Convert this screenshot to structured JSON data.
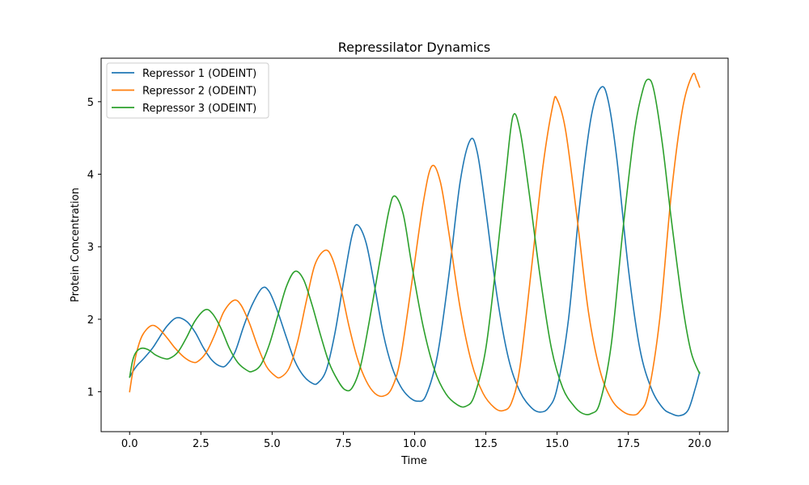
{
  "chart_data": {
    "type": "line",
    "title": "Repressilator Dynamics",
    "xlabel": "Time",
    "ylabel": "Protein Concentration",
    "xlim": [
      -1.0,
      21.0
    ],
    "ylim": [
      0.45,
      5.6
    ],
    "xticks": [
      0.0,
      2.5,
      5.0,
      7.5,
      10.0,
      12.5,
      15.0,
      17.5,
      20.0
    ],
    "xtick_labels": [
      "0.0",
      "2.5",
      "5.0",
      "7.5",
      "10.0",
      "12.5",
      "15.0",
      "17.5",
      "20.0"
    ],
    "yticks": [
      1,
      2,
      3,
      4,
      5
    ],
    "ytick_labels": [
      "1",
      "2",
      "3",
      "4",
      "5"
    ],
    "grid": false,
    "legend_position": "top-left",
    "series": [
      {
        "name": "Repressor 1 (ODEINT)",
        "color": "#1f77b4",
        "points": [
          [
            0.0,
            1.2
          ],
          [
            0.1,
            1.27
          ],
          [
            0.2,
            1.33
          ],
          [
            0.3,
            1.38
          ],
          [
            0.5,
            1.46
          ],
          [
            0.8,
            1.6
          ],
          [
            1.0,
            1.72
          ],
          [
            1.3,
            1.9
          ],
          [
            1.65,
            2.02
          ],
          [
            2.0,
            1.97
          ],
          [
            2.3,
            1.82
          ],
          [
            2.6,
            1.6
          ],
          [
            2.9,
            1.43
          ],
          [
            3.2,
            1.35
          ],
          [
            3.4,
            1.37
          ],
          [
            3.7,
            1.55
          ],
          [
            4.0,
            1.9
          ],
          [
            4.3,
            2.2
          ],
          [
            4.65,
            2.43
          ],
          [
            4.9,
            2.38
          ],
          [
            5.2,
            2.1
          ],
          [
            5.5,
            1.75
          ],
          [
            5.8,
            1.42
          ],
          [
            6.1,
            1.22
          ],
          [
            6.4,
            1.12
          ],
          [
            6.6,
            1.12
          ],
          [
            6.9,
            1.3
          ],
          [
            7.2,
            1.8
          ],
          [
            7.5,
            2.5
          ],
          [
            7.8,
            3.15
          ],
          [
            8.0,
            3.3
          ],
          [
            8.3,
            3.05
          ],
          [
            8.6,
            2.45
          ],
          [
            8.9,
            1.8
          ],
          [
            9.2,
            1.35
          ],
          [
            9.5,
            1.08
          ],
          [
            9.8,
            0.93
          ],
          [
            10.1,
            0.87
          ],
          [
            10.4,
            0.95
          ],
          [
            10.8,
            1.5
          ],
          [
            11.2,
            2.6
          ],
          [
            11.6,
            3.9
          ],
          [
            11.95,
            4.47
          ],
          [
            12.2,
            4.3
          ],
          [
            12.5,
            3.5
          ],
          [
            12.9,
            2.3
          ],
          [
            13.3,
            1.45
          ],
          [
            13.7,
            1.0
          ],
          [
            14.1,
            0.78
          ],
          [
            14.4,
            0.72
          ],
          [
            14.7,
            0.78
          ],
          [
            15.0,
            1.05
          ],
          [
            15.4,
            2.0
          ],
          [
            15.8,
            3.6
          ],
          [
            16.2,
            4.8
          ],
          [
            16.55,
            5.2
          ],
          [
            16.8,
            5.0
          ],
          [
            17.1,
            4.2
          ],
          [
            17.5,
            2.7
          ],
          [
            17.9,
            1.6
          ],
          [
            18.3,
            1.05
          ],
          [
            18.7,
            0.78
          ],
          [
            19.0,
            0.7
          ],
          [
            19.3,
            0.67
          ],
          [
            19.6,
            0.75
          ],
          [
            19.85,
            1.05
          ],
          [
            20.0,
            1.27
          ]
        ]
      },
      {
        "name": "Repressor 2 (ODEINT)",
        "color": "#ff7f0e",
        "points": [
          [
            0.0,
            1.0
          ],
          [
            0.1,
            1.25
          ],
          [
            0.25,
            1.55
          ],
          [
            0.45,
            1.78
          ],
          [
            0.75,
            1.91
          ],
          [
            1.0,
            1.88
          ],
          [
            1.3,
            1.75
          ],
          [
            1.6,
            1.6
          ],
          [
            1.9,
            1.48
          ],
          [
            2.2,
            1.41
          ],
          [
            2.4,
            1.42
          ],
          [
            2.7,
            1.55
          ],
          [
            3.0,
            1.8
          ],
          [
            3.3,
            2.1
          ],
          [
            3.65,
            2.26
          ],
          [
            3.9,
            2.2
          ],
          [
            4.2,
            1.95
          ],
          [
            4.5,
            1.62
          ],
          [
            4.8,
            1.35
          ],
          [
            5.1,
            1.22
          ],
          [
            5.3,
            1.2
          ],
          [
            5.6,
            1.33
          ],
          [
            5.9,
            1.7
          ],
          [
            6.2,
            2.25
          ],
          [
            6.5,
            2.75
          ],
          [
            6.85,
            2.95
          ],
          [
            7.1,
            2.85
          ],
          [
            7.4,
            2.45
          ],
          [
            7.7,
            1.9
          ],
          [
            8.0,
            1.45
          ],
          [
            8.3,
            1.15
          ],
          [
            8.6,
            0.98
          ],
          [
            8.9,
            0.94
          ],
          [
            9.2,
            1.05
          ],
          [
            9.5,
            1.45
          ],
          [
            9.9,
            2.5
          ],
          [
            10.3,
            3.6
          ],
          [
            10.6,
            4.11
          ],
          [
            10.9,
            3.9
          ],
          [
            11.2,
            3.2
          ],
          [
            11.6,
            2.15
          ],
          [
            12.0,
            1.4
          ],
          [
            12.4,
            0.98
          ],
          [
            12.8,
            0.78
          ],
          [
            13.1,
            0.74
          ],
          [
            13.4,
            0.85
          ],
          [
            13.7,
            1.35
          ],
          [
            14.1,
            2.7
          ],
          [
            14.5,
            4.1
          ],
          [
            14.85,
            4.95
          ],
          [
            15.0,
            5.03
          ],
          [
            15.3,
            4.6
          ],
          [
            15.7,
            3.4
          ],
          [
            16.1,
            2.1
          ],
          [
            16.5,
            1.3
          ],
          [
            16.9,
            0.9
          ],
          [
            17.3,
            0.73
          ],
          [
            17.65,
            0.68
          ],
          [
            17.9,
            0.73
          ],
          [
            18.2,
            0.98
          ],
          [
            18.6,
            2.0
          ],
          [
            19.0,
            3.7
          ],
          [
            19.4,
            4.9
          ],
          [
            19.75,
            5.37
          ],
          [
            19.9,
            5.3
          ],
          [
            20.0,
            5.2
          ]
        ]
      },
      {
        "name": "Repressor 3 (ODEINT)",
        "color": "#2ca02c",
        "points": [
          [
            0.0,
            1.2
          ],
          [
            0.1,
            1.42
          ],
          [
            0.2,
            1.53
          ],
          [
            0.35,
            1.59
          ],
          [
            0.5,
            1.6
          ],
          [
            0.7,
            1.57
          ],
          [
            0.9,
            1.51
          ],
          [
            1.2,
            1.46
          ],
          [
            1.4,
            1.46
          ],
          [
            1.7,
            1.55
          ],
          [
            2.0,
            1.75
          ],
          [
            2.3,
            1.98
          ],
          [
            2.65,
            2.13
          ],
          [
            2.9,
            2.08
          ],
          [
            3.2,
            1.88
          ],
          [
            3.5,
            1.6
          ],
          [
            3.8,
            1.4
          ],
          [
            4.1,
            1.3
          ],
          [
            4.3,
            1.28
          ],
          [
            4.6,
            1.37
          ],
          [
            4.9,
            1.65
          ],
          [
            5.2,
            2.05
          ],
          [
            5.5,
            2.45
          ],
          [
            5.8,
            2.66
          ],
          [
            6.1,
            2.55
          ],
          [
            6.4,
            2.2
          ],
          [
            6.7,
            1.78
          ],
          [
            7.0,
            1.4
          ],
          [
            7.3,
            1.16
          ],
          [
            7.55,
            1.03
          ],
          [
            7.8,
            1.05
          ],
          [
            8.1,
            1.35
          ],
          [
            8.4,
            1.95
          ],
          [
            8.8,
            2.85
          ],
          [
            9.1,
            3.5
          ],
          [
            9.3,
            3.7
          ],
          [
            9.6,
            3.45
          ],
          [
            9.9,
            2.75
          ],
          [
            10.3,
            1.9
          ],
          [
            10.7,
            1.3
          ],
          [
            11.1,
            0.97
          ],
          [
            11.5,
            0.82
          ],
          [
            11.8,
            0.8
          ],
          [
            12.1,
            0.95
          ],
          [
            12.5,
            1.6
          ],
          [
            12.9,
            2.9
          ],
          [
            13.2,
            4.0
          ],
          [
            13.45,
            4.8
          ],
          [
            13.7,
            4.6
          ],
          [
            14.0,
            3.8
          ],
          [
            14.4,
            2.6
          ],
          [
            14.8,
            1.6
          ],
          [
            15.2,
            1.05
          ],
          [
            15.6,
            0.8
          ],
          [
            15.9,
            0.7
          ],
          [
            16.2,
            0.7
          ],
          [
            16.5,
            0.85
          ],
          [
            16.9,
            1.65
          ],
          [
            17.3,
            3.2
          ],
          [
            17.7,
            4.55
          ],
          [
            18.0,
            5.15
          ],
          [
            18.2,
            5.31
          ],
          [
            18.4,
            5.15
          ],
          [
            18.7,
            4.4
          ],
          [
            19.0,
            3.4
          ],
          [
            19.4,
            2.2
          ],
          [
            19.7,
            1.55
          ],
          [
            20.0,
            1.25
          ]
        ]
      }
    ]
  }
}
